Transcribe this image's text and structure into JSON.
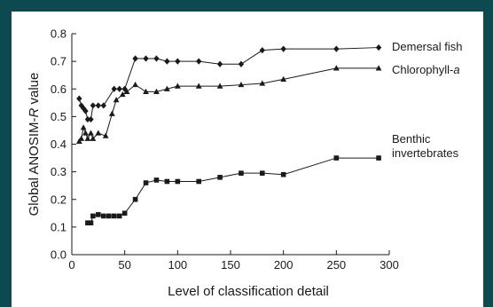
{
  "colors": {
    "background": "#0d4a4f",
    "panel": "#ffffff",
    "ink": "#1a1a1a"
  },
  "chart_data": {
    "type": "line",
    "title": "",
    "xlabel": "Level of classification detail",
    "ylabel_parts": [
      "Global ANOSIM-",
      "R",
      " value"
    ],
    "xlim": [
      0,
      300
    ],
    "ylim": [
      0,
      0.8
    ],
    "xticks": [
      0,
      50,
      100,
      150,
      200,
      250,
      300
    ],
    "yticks": [
      0.0,
      0.1,
      0.2,
      0.3,
      0.4,
      0.5,
      0.6,
      0.7,
      0.8
    ],
    "x_tick_labels": [
      "0",
      "50",
      "100",
      "150",
      "200",
      "250",
      "300"
    ],
    "y_tick_labels": [
      "0.0",
      "0.1",
      "0.2",
      "0.3",
      "0.4",
      "0.5",
      "0.6",
      "0.7",
      "0.8"
    ],
    "grid": false,
    "series": [
      {
        "name_lines": [
          "Demersal fish"
        ],
        "marker": "diamond",
        "x": [
          7,
          9,
          11,
          13,
          15,
          18,
          20,
          25,
          30,
          40,
          45,
          50,
          60,
          70,
          80,
          90,
          100,
          120,
          140,
          160,
          180,
          200,
          250,
          290
        ],
        "y": [
          0.565,
          0.54,
          0.53,
          0.52,
          0.49,
          0.49,
          0.54,
          0.54,
          0.54,
          0.6,
          0.6,
          0.6,
          0.71,
          0.71,
          0.71,
          0.7,
          0.7,
          0.7,
          0.69,
          0.69,
          0.74,
          0.745,
          0.745,
          0.75
        ]
      },
      {
        "name_lines": [
          "Chlorophyll-",
          "a"
        ],
        "marker": "triangle",
        "x": [
          7,
          9,
          11,
          13,
          15,
          18,
          20,
          25,
          32,
          38,
          42,
          48,
          52,
          60,
          70,
          80,
          90,
          100,
          120,
          140,
          160,
          180,
          200,
          250,
          290
        ],
        "y": [
          0.41,
          0.42,
          0.46,
          0.44,
          0.42,
          0.44,
          0.42,
          0.44,
          0.43,
          0.51,
          0.56,
          0.58,
          0.59,
          0.615,
          0.59,
          0.59,
          0.6,
          0.61,
          0.61,
          0.61,
          0.615,
          0.62,
          0.635,
          0.675,
          0.675
        ]
      },
      {
        "name_lines": [
          "Benthic",
          "invertebrates"
        ],
        "marker": "square",
        "x": [
          15,
          18,
          20,
          25,
          30,
          35,
          40,
          45,
          50,
          60,
          70,
          80,
          90,
          100,
          120,
          140,
          160,
          180,
          200,
          250,
          290
        ],
        "y": [
          0.115,
          0.115,
          0.14,
          0.145,
          0.14,
          0.14,
          0.14,
          0.14,
          0.15,
          0.2,
          0.26,
          0.27,
          0.265,
          0.265,
          0.265,
          0.28,
          0.295,
          0.295,
          0.29,
          0.35,
          0.35
        ]
      }
    ]
  }
}
